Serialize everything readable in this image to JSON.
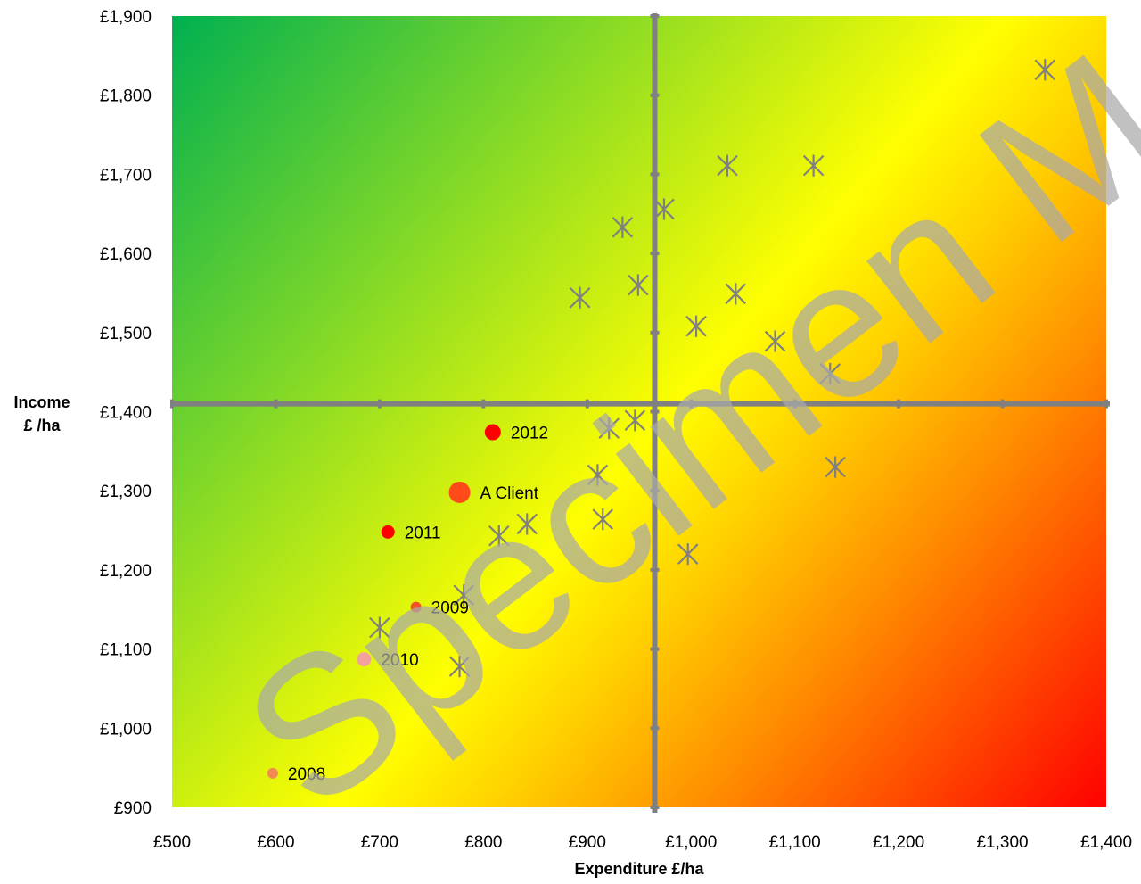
{
  "chart_data": {
    "type": "scatter",
    "xlabel": "Expenditure £/ha",
    "ylabel_lines": [
      "Income",
      "£ /ha"
    ],
    "xlim": [
      500,
      1400
    ],
    "ylim": [
      900,
      1900
    ],
    "x_ticks": [
      500,
      600,
      700,
      800,
      900,
      1000,
      1100,
      1200,
      1300,
      1400
    ],
    "y_ticks": [
      900,
      1000,
      1100,
      1200,
      1300,
      1400,
      1500,
      1600,
      1700,
      1800,
      1900
    ],
    "x_tick_labels": [
      "£500",
      "£600",
      "£700",
      "£800",
      "£900",
      "£1,000",
      "£1,100",
      "£1,200",
      "£1,300",
      "£1,400"
    ],
    "y_tick_labels": [
      "£900",
      "£1,000",
      "£1,100",
      "£1,200",
      "£1,300",
      "£1,400",
      "£1,500",
      "£1,600",
      "£1,700",
      "£1,800",
      "£1,900"
    ],
    "grid": false,
    "background": "diagonal gradient: green top-left, yellow middle, red bottom-right",
    "quadrant_lines": {
      "x": 965,
      "y": 1410
    },
    "series": [
      {
        "marker": "asterisk",
        "color": "#808080",
        "points": [
          [
            1341,
            1832
          ],
          [
            1035,
            1711
          ],
          [
            1118,
            1711
          ],
          [
            974,
            1656
          ],
          [
            934,
            1633
          ],
          [
            893,
            1544
          ],
          [
            949,
            1560
          ],
          [
            1043,
            1549
          ],
          [
            1005,
            1508
          ],
          [
            1081,
            1489
          ],
          [
            1134,
            1448
          ],
          [
            946,
            1389
          ],
          [
            921,
            1379
          ],
          [
            910,
            1320
          ],
          [
            1139,
            1330
          ],
          [
            842,
            1258
          ],
          [
            915,
            1264
          ],
          [
            815,
            1243
          ],
          [
            997,
            1220
          ],
          [
            781,
            1168
          ],
          [
            700,
            1127
          ],
          [
            777,
            1078
          ]
        ]
      },
      {
        "marker": "circle",
        "points": [
          {
            "label": "2012",
            "x": 809,
            "y": 1374,
            "color": "#ff0000",
            "r": 9
          },
          {
            "label": "A Client",
            "x": 777,
            "y": 1298,
            "color": "#ff4a1a",
            "r": 12
          },
          {
            "label": "2011",
            "x": 708,
            "y": 1248,
            "color": "#ff0000",
            "r": 7.5
          },
          {
            "label": "2009",
            "x": 735,
            "y": 1153,
            "color": "#f2522a",
            "r": 6
          },
          {
            "label": "2010",
            "x": 685,
            "y": 1087,
            "color": "#f4a0a0",
            "r": 8
          },
          {
            "label": "2008",
            "x": 597,
            "y": 943,
            "color": "#f08a50",
            "r": 6
          }
        ]
      }
    ],
    "watermark": "Specimen M",
    "colors": {
      "green": "#00b050",
      "yellow": "#ffff00",
      "red": "#ff0000",
      "axis_line": "#808080"
    }
  }
}
